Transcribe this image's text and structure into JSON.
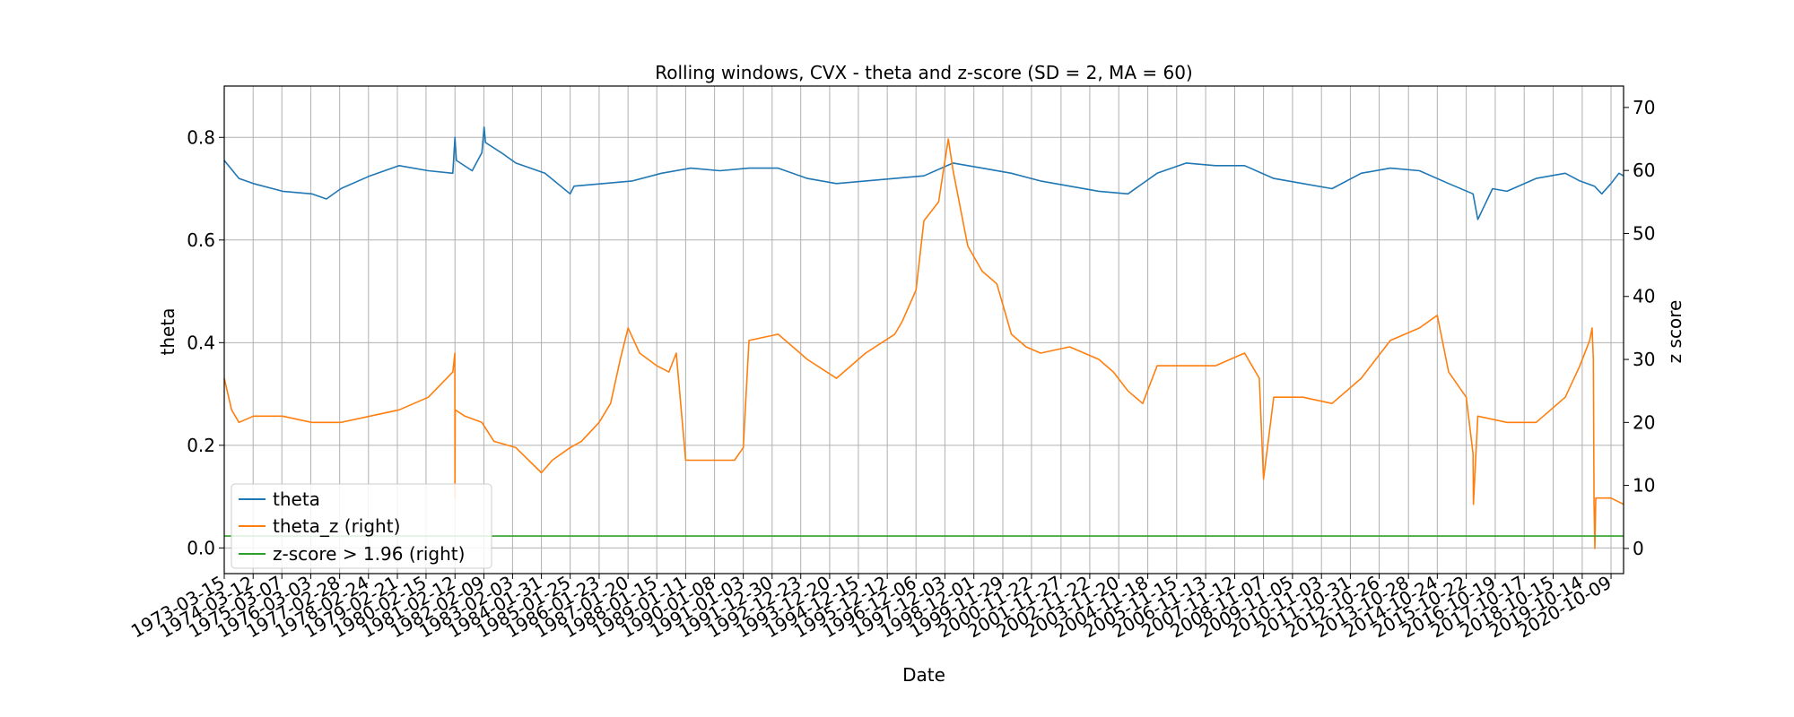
{
  "chart_data": {
    "type": "line",
    "title": "Rolling windows, CVX - theta and z-score (SD = 2, MA = 60)",
    "xlabel": "Date",
    "ylabel_left": "theta",
    "ylabel_right": "z score",
    "xlim": [
      "1973-03-15",
      "2021-03-15"
    ],
    "ylim_left": [
      -0.05,
      0.9
    ],
    "ylim_right": [
      -4.0,
      73.4
    ],
    "yticks_left": [
      "0.0",
      "0.2",
      "0.4",
      "0.6",
      "0.8"
    ],
    "yticks_right": [
      "0",
      "10",
      "20",
      "30",
      "40",
      "50",
      "60",
      "70"
    ],
    "grid": true,
    "legend_position": "lower-left",
    "x_tick_labels": [
      "1973-03-15",
      "1974-03-12",
      "1975-03-07",
      "1976-03-03",
      "1977-02-28",
      "1978-02-24",
      "1979-02-21",
      "1980-02-15",
      "1981-02-12",
      "1982-02-09",
      "1983-02-03",
      "1984-01-31",
      "1985-01-25",
      "1986-01-23",
      "1987-01-20",
      "1988-01-15",
      "1989-01-11",
      "1990-01-08",
      "1991-01-03",
      "1991-12-30",
      "1992-12-23",
      "1993-12-20",
      "1994-12-15",
      "1995-12-12",
      "1996-12-06",
      "1997-12-03",
      "1998-12-01",
      "1999-11-29",
      "2000-11-22",
      "2001-11-27",
      "2002-11-22",
      "2003-11-20",
      "2004-11-18",
      "2005-11-15",
      "2006-11-13",
      "2007-11-12",
      "2008-11-07",
      "2009-11-05",
      "2010-11-03",
      "2011-10-31",
      "2012-10-26",
      "2013-10-28",
      "2014-10-24",
      "2015-10-22",
      "2016-10-19",
      "2017-10-17",
      "2018-10-15",
      "2019-10-14",
      "2020-10-09"
    ],
    "series": [
      {
        "name": "theta",
        "axis": "left",
        "color": "#1f77b4",
        "x": [
          "1973-03-15",
          "1973-09-15",
          "1974-03-15",
          "1975-03-15",
          "1976-03-15",
          "1976-09-15",
          "1977-03-15",
          "1978-03-15",
          "1979-03-15",
          "1980-03-15",
          "1981-01-15",
          "1981-02-12",
          "1981-03-01",
          "1981-09-15",
          "1982-01-15",
          "1982-02-12",
          "1982-03-01",
          "1982-09-15",
          "1983-03-15",
          "1984-03-15",
          "1985-01-25",
          "1985-03-15",
          "1986-03-15",
          "1987-03-15",
          "1988-03-15",
          "1989-03-15",
          "1990-03-15",
          "1991-03-15",
          "1992-03-15",
          "1993-03-15",
          "1994-03-15",
          "1995-03-15",
          "1996-03-15",
          "1997-03-15",
          "1998-03-15",
          "1999-03-15",
          "2000-03-15",
          "2001-03-15",
          "2002-03-15",
          "2003-03-15",
          "2004-03-15",
          "2005-03-15",
          "2006-03-15",
          "2007-03-15",
          "2008-03-15",
          "2009-03-15",
          "2010-03-15",
          "2011-03-15",
          "2012-03-15",
          "2013-03-15",
          "2014-03-15",
          "2015-03-15",
          "2016-01-15",
          "2016-03-15",
          "2016-09-15",
          "2017-03-15",
          "2018-03-15",
          "2019-03-15",
          "2019-09-15",
          "2020-03-15",
          "2020-06-15",
          "2020-10-09",
          "2021-01-15",
          "2021-03-15"
        ],
        "y": [
          0.755,
          0.72,
          0.71,
          0.695,
          0.69,
          0.68,
          0.7,
          0.725,
          0.745,
          0.735,
          0.73,
          0.8,
          0.755,
          0.735,
          0.77,
          0.82,
          0.79,
          0.77,
          0.75,
          0.73,
          0.69,
          0.705,
          0.71,
          0.715,
          0.73,
          0.74,
          0.735,
          0.74,
          0.74,
          0.72,
          0.71,
          0.715,
          0.72,
          0.725,
          0.75,
          0.74,
          0.73,
          0.715,
          0.705,
          0.695,
          0.69,
          0.73,
          0.75,
          0.745,
          0.745,
          0.72,
          0.71,
          0.7,
          0.73,
          0.74,
          0.735,
          0.71,
          0.69,
          0.64,
          0.7,
          0.695,
          0.72,
          0.73,
          0.715,
          0.705,
          0.69,
          0.71,
          0.73,
          0.725
        ]
      },
      {
        "name": "theta_z (right)",
        "axis": "right",
        "color": "#ff7f0e",
        "x": [
          "1973-03-15",
          "1973-06-15",
          "1973-09-15",
          "1974-03-15",
          "1975-03-15",
          "1976-03-15",
          "1977-03-15",
          "1978-03-15",
          "1979-03-15",
          "1980-03-15",
          "1981-01-15",
          "1981-02-10",
          "1981-02-12",
          "1981-02-15",
          "1981-06-15",
          "1982-01-15",
          "1982-06-15",
          "1983-03-15",
          "1984-01-31",
          "1984-06-15",
          "1985-01-25",
          "1985-06-15",
          "1986-01-23",
          "1986-06-15",
          "1986-10-15",
          "1987-01-20",
          "1987-06-15",
          "1988-01-15",
          "1988-06-15",
          "1988-09-15",
          "1989-01-11",
          "1990-01-08",
          "1990-09-15",
          "1991-01-03",
          "1991-03-15",
          "1992-03-15",
          "1993-03-15",
          "1994-03-15",
          "1995-03-15",
          "1996-03-15",
          "1996-06-15",
          "1996-12-06",
          "1997-03-15",
          "1997-09-15",
          "1998-01-15",
          "1998-03-15",
          "1998-09-15",
          "1999-03-15",
          "1999-09-15",
          "2000-03-15",
          "2000-09-15",
          "2001-03-15",
          "2002-03-15",
          "2003-03-15",
          "2003-09-15",
          "2004-03-15",
          "2004-09-15",
          "2005-03-15",
          "2006-03-15",
          "2007-03-15",
          "2008-03-15",
          "2008-09-15",
          "2008-11-07",
          "2009-03-15",
          "2010-03-15",
          "2011-03-15",
          "2012-03-15",
          "2013-03-15",
          "2014-03-15",
          "2014-10-24",
          "2015-03-15",
          "2015-10-22",
          "2016-01-15",
          "2016-01-20",
          "2016-03-15",
          "2017-03-15",
          "2018-03-15",
          "2019-03-15",
          "2019-09-15",
          "2020-01-15",
          "2020-02-15",
          "2020-03-01",
          "2020-03-10",
          "2020-03-20",
          "2020-04-01",
          "2020-10-09",
          "2021-03-15"
        ],
        "y": [
          27,
          22,
          20,
          21,
          21,
          20,
          20,
          21,
          22,
          24,
          28,
          31,
          8,
          22,
          21,
          20,
          17,
          16,
          12,
          14,
          16,
          17,
          20,
          23,
          30,
          35,
          31,
          29,
          28,
          31,
          14,
          14,
          14,
          16,
          33,
          34,
          30,
          27,
          31,
          34,
          36,
          41,
          52,
          55,
          65,
          60,
          48,
          44,
          42,
          34,
          32,
          31,
          32,
          30,
          28,
          25,
          23,
          29,
          29,
          29,
          31,
          27,
          11,
          24,
          24,
          23,
          27,
          33,
          35,
          37,
          28,
          24,
          15,
          7,
          21,
          20,
          20,
          24,
          29,
          33,
          35,
          30,
          7,
          0,
          8,
          8,
          7
        ]
      },
      {
        "name": "z-score > 1.96 (right)",
        "axis": "right",
        "color": "#2ca02c",
        "x": [
          "1973-03-15",
          "2021-03-15"
        ],
        "y": [
          1.96,
          1.96
        ]
      }
    ]
  }
}
